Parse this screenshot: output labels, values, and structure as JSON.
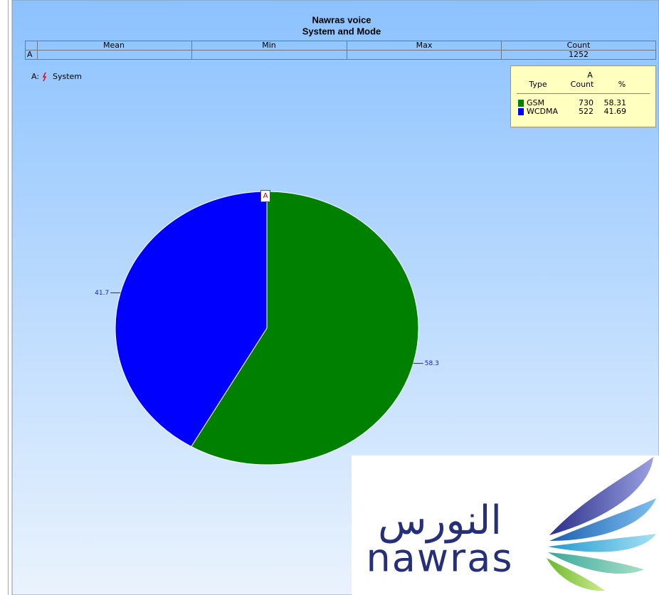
{
  "chart_data": {
    "type": "pie",
    "title": "Nawras voice",
    "subtitle": "System and Mode",
    "stats_table": {
      "columns": [
        "Mean",
        "Min",
        "Max",
        "Count"
      ],
      "row_label": "A",
      "count": 1252
    },
    "series_label": "A:",
    "series_name": "System",
    "legend": {
      "group": "A",
      "headers": [
        "Type",
        "Count",
        "%"
      ]
    },
    "categories": [
      "GSM",
      "WCDMA"
    ],
    "counts": [
      730,
      522
    ],
    "values": [
      58.31,
      41.69
    ],
    "value_labels": [
      "58.3",
      "41.7"
    ],
    "colors": [
      "#008000",
      "#0000ff"
    ]
  },
  "logo": {
    "arabic": "النورس",
    "latin": "nawras"
  }
}
